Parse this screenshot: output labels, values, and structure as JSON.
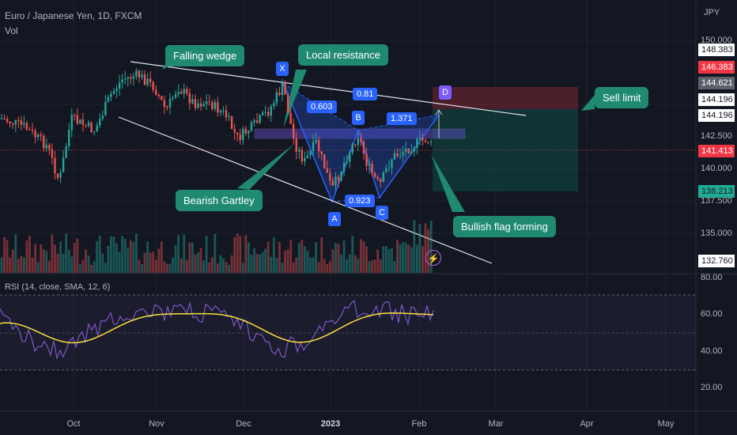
{
  "header": {
    "symbol": "Euro / Japanese Yen, 1D, FXCM",
    "volume_label": "Vol",
    "currency": "JPY"
  },
  "callouts": {
    "falling_wedge": "Falling wedge",
    "local_resistance": "Local resistance",
    "sell_limit": "Sell limit",
    "bearish_gartley": "Bearish Gartley",
    "bullish_flag": "Bullish flag forming"
  },
  "pattern_points": {
    "x": "X",
    "a": "A",
    "b": "B",
    "c": "C",
    "d": "D"
  },
  "ratios": {
    "xb": "0.603",
    "ac": "0.923",
    "bd": "1.371",
    "top": "0.81"
  },
  "rsi_header": "RSI (14, close, SMA, 12, 6)",
  "price_axis": [
    "150.000",
    "142.500",
    "140.000",
    "137.500",
    "135.000"
  ],
  "price_badges": [
    {
      "value": "148.383",
      "color": "#ffffff",
      "text_color": "#131722"
    },
    {
      "value": "146.383",
      "color": "#f23645",
      "text_color": "#ffffff"
    },
    {
      "value": "144.621",
      "color": "#5d606b",
      "text_color": "#ffffff"
    },
    {
      "value": "144.196",
      "color": "#ffffff",
      "text_color": "#131722"
    },
    {
      "value": "144.196",
      "color": "#ffffff",
      "text_color": "#131722"
    },
    {
      "value": "141.413",
      "color": "#f23645",
      "text_color": "#ffffff"
    },
    {
      "value": "138.213",
      "color": "#22ab94",
      "text_color": "#131722"
    },
    {
      "value": "132.760",
      "color": "#ffffff",
      "text_color": "#131722"
    }
  ],
  "rsi_axis": [
    "80.00",
    "60.00",
    "40.00",
    "20.00"
  ],
  "time_axis": [
    "Oct",
    "Nov",
    "Dec",
    "2023",
    "Feb",
    "Mar",
    "Apr",
    "May"
  ],
  "colors": {
    "bull": "#26a69a",
    "bear": "#ef5350",
    "rsi_line": "#7e57c2",
    "rsi_ma": "#f7e13a",
    "callout": "#1f8a70",
    "pattern": "#2962ff"
  },
  "icons": {
    "event": "lightning-icon"
  }
}
